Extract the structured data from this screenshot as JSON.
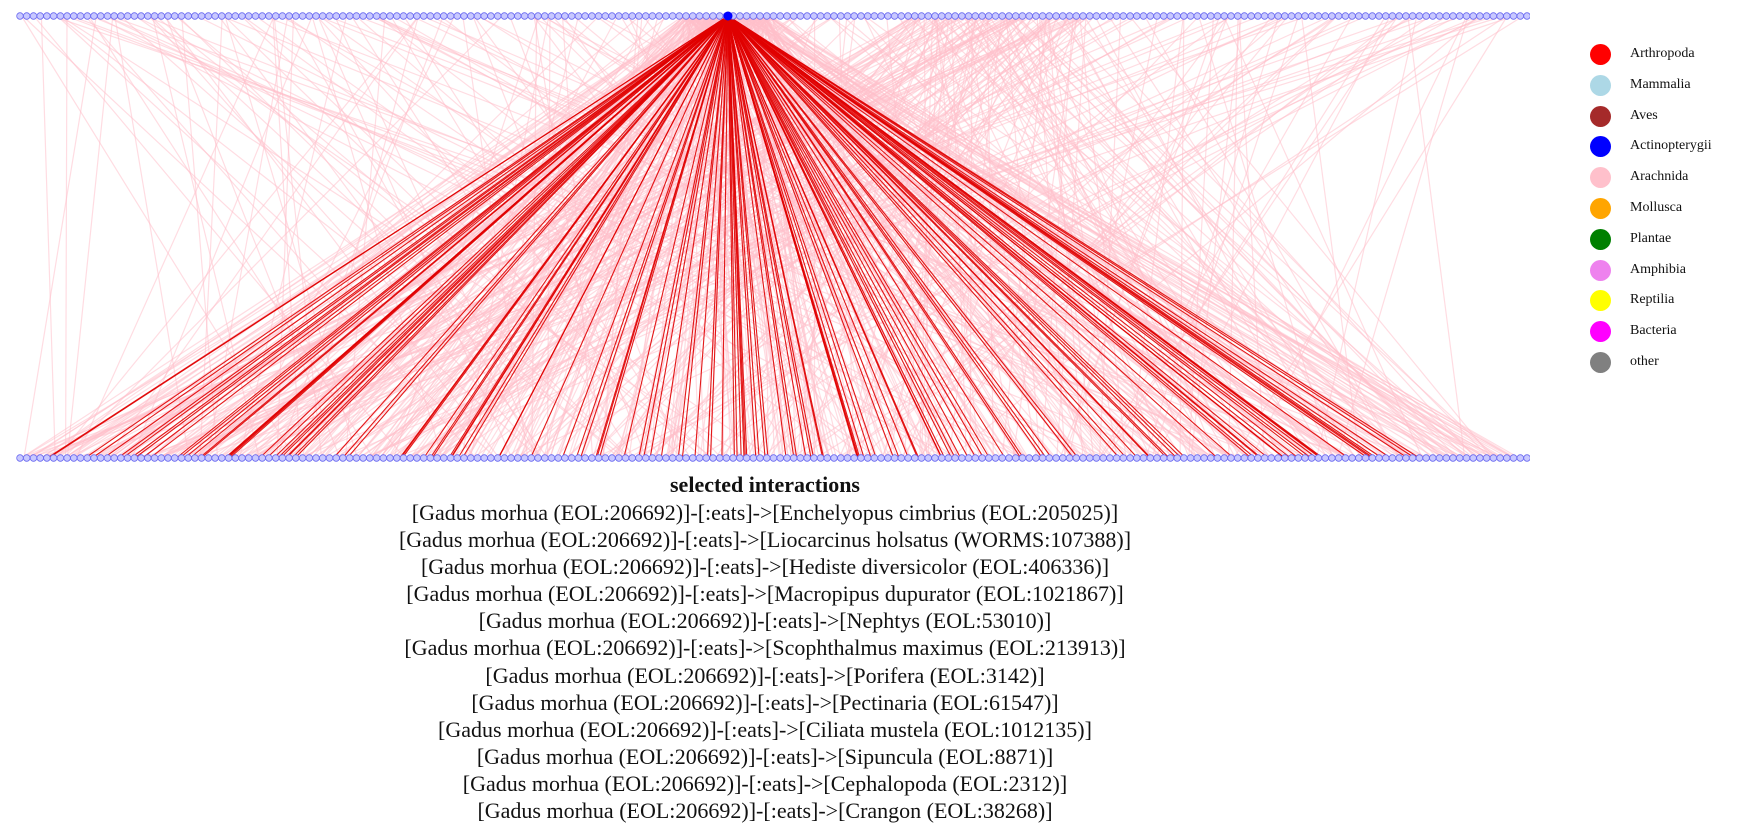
{
  "legend": [
    {
      "label": "Arthropoda",
      "color": "#ff0000"
    },
    {
      "label": "Mammalia",
      "color": "#add8e6"
    },
    {
      "label": "Aves",
      "color": "#a52a2a"
    },
    {
      "label": "Actinopterygii",
      "color": "#0000ff"
    },
    {
      "label": "Arachnida",
      "color": "#ffc0cb"
    },
    {
      "label": "Mollusca",
      "color": "#ffa500"
    },
    {
      "label": "Plantae",
      "color": "#008000"
    },
    {
      "label": "Amphibia",
      "color": "#ee82ee"
    },
    {
      "label": "Reptilia",
      "color": "#ffff00"
    },
    {
      "label": "Bacteria",
      "color": "#ff00ff"
    },
    {
      "label": "other",
      "color": "#808080"
    }
  ],
  "network": {
    "selected_color": "#e00000",
    "background_edge_color": "#ffc0cb",
    "node_color": "#c8c8ff",
    "node_stroke": "#6a6af0"
  },
  "selected_panel": {
    "title": "selected interactions",
    "interactions": [
      "[Gadus morhua (EOL:206692)]-[:eats]->[Enchelyopus cimbrius (EOL:205025)]",
      "[Gadus morhua (EOL:206692)]-[:eats]->[Liocarcinus holsatus (WORMS:107388)]",
      "[Gadus morhua (EOL:206692)]-[:eats]->[Hediste diversicolor (EOL:406336)]",
      "[Gadus morhua (EOL:206692)]-[:eats]->[Macropipus dupurator (EOL:1021867)]",
      "[Gadus morhua (EOL:206692)]-[:eats]->[Nephtys (EOL:53010)]",
      "[Gadus morhua (EOL:206692)]-[:eats]->[Scophthalmus maximus (EOL:213913)]",
      "[Gadus morhua (EOL:206692)]-[:eats]->[Porifera (EOL:3142)]",
      "[Gadus morhua (EOL:206692)]-[:eats]->[Pectinaria (EOL:61547)]",
      "[Gadus morhua (EOL:206692)]-[:eats]->[Ciliata mustela (EOL:1012135)]",
      "[Gadus morhua (EOL:206692)]-[:eats]->[Sipuncula (EOL:8871)]",
      "[Gadus morhua (EOL:206692)]-[:eats]->[Cephalopoda (EOL:2312)]",
      "[Gadus morhua (EOL:206692)]-[:eats]->[Crangon (EOL:38268)]"
    ]
  }
}
